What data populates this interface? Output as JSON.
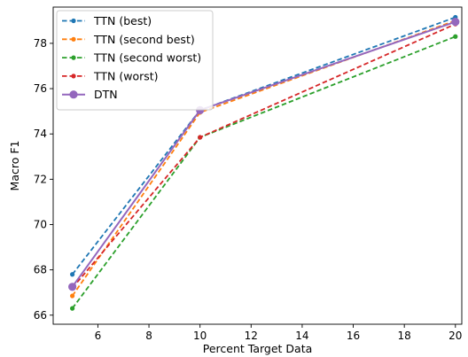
{
  "chart_data": {
    "type": "line",
    "title": "",
    "xlabel": "Percent Target Data",
    "ylabel": "Macro F1",
    "x": [
      5,
      10,
      20
    ],
    "xlim": [
      4.25,
      20.25
    ],
    "ylim": [
      65.6,
      79.6
    ],
    "xticks": [
      "6",
      "8",
      "10",
      "12",
      "14",
      "16",
      "18",
      "20"
    ],
    "yticks": [
      "66",
      "68",
      "70",
      "72",
      "74",
      "76",
      "78"
    ],
    "grid": false,
    "legend_position": "top-left",
    "series": [
      {
        "name": "TTN (best)",
        "values": [
          67.8,
          75.05,
          79.15
        ],
        "color": "#1f77b4",
        "style": "dashed",
        "marker": "small-circle"
      },
      {
        "name": "TTN (second best)",
        "values": [
          66.85,
          74.95,
          79.0
        ],
        "color": "#ff7f0e",
        "style": "dashed",
        "marker": "small-circle"
      },
      {
        "name": "TTN (second worst)",
        "values": [
          66.3,
          73.85,
          78.3
        ],
        "color": "#2ca02c",
        "style": "dashed",
        "marker": "small-circle"
      },
      {
        "name": "TTN (worst)",
        "values": [
          67.2,
          73.85,
          78.85
        ],
        "color": "#d62728",
        "style": "dashed",
        "marker": "small-circle"
      },
      {
        "name": "DTN",
        "values": [
          67.25,
          75.05,
          78.95
        ],
        "color": "#9467bd",
        "style": "solid",
        "marker": "large-circle"
      }
    ]
  }
}
